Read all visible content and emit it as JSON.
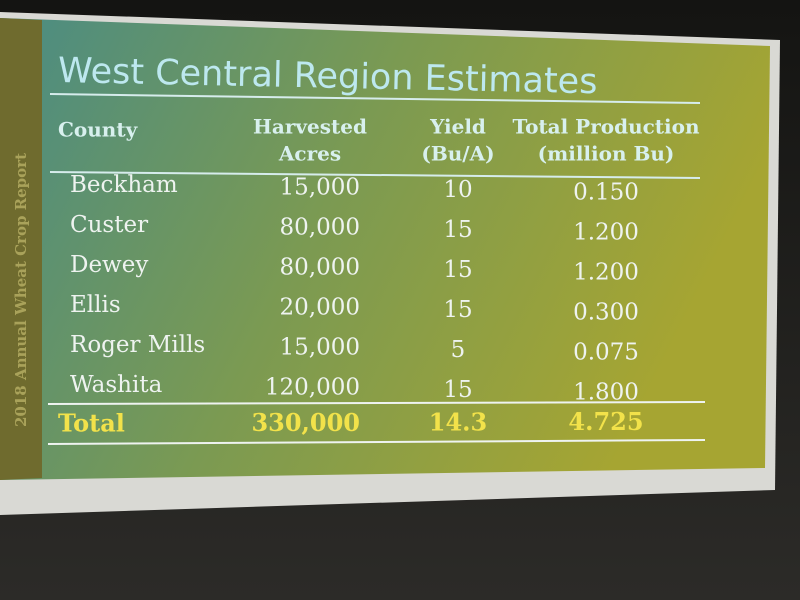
{
  "side_label": "2018 Annual Wheat Crop Report",
  "title": "West Central Region Estimates",
  "table": {
    "header": [
      [
        "County"
      ],
      [
        "Harvested",
        "Acres"
      ],
      [
        "Yield",
        "(Bu/A)"
      ],
      [
        "Total Production",
        "(million Bu)"
      ]
    ],
    "rows": [
      [
        "Beckham",
        "15,000",
        "10",
        "0.150"
      ],
      [
        "Custer",
        "80,000",
        "15",
        "1.200"
      ],
      [
        "Dewey",
        "80,000",
        "15",
        "1.200"
      ],
      [
        "Ellis",
        "20,000",
        "15",
        "0.300"
      ],
      [
        "Roger Mills",
        "15,000",
        "5",
        "0.075"
      ],
      [
        "Washita",
        "120,000",
        "15",
        "1.800"
      ]
    ],
    "total": [
      "Total",
      "330,000",
      "14.3",
      "4.725"
    ]
  }
}
